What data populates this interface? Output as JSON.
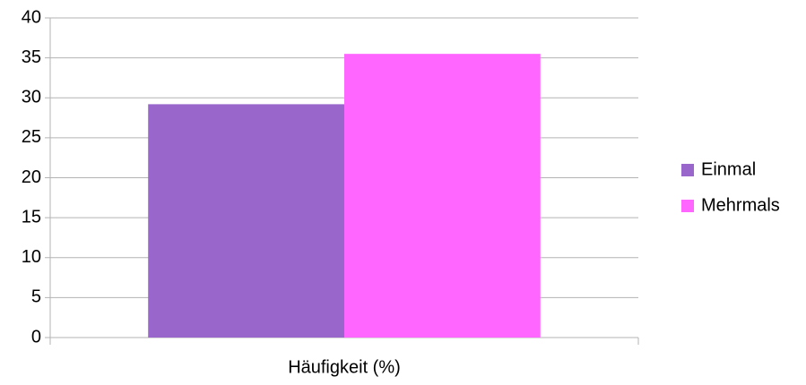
{
  "chart_data": {
    "type": "bar",
    "categories": [
      "Häufigkeit (%)"
    ],
    "series": [
      {
        "name": "Einmal",
        "color": "#9966cc",
        "values": [
          29.2
        ]
      },
      {
        "name": "Mehrmals",
        "color": "#ff66ff",
        "values": [
          35.5
        ]
      }
    ],
    "ylim": [
      0,
      40
    ],
    "yticks": [
      0,
      5,
      10,
      15,
      20,
      25,
      30,
      35,
      40
    ],
    "grid": true,
    "legend": "right"
  }
}
